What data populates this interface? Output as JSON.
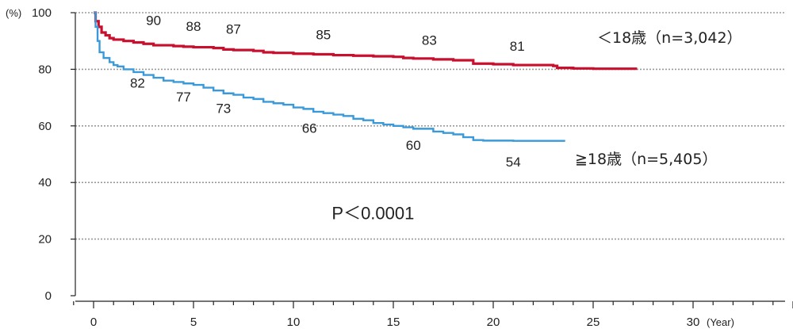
{
  "chart_data": {
    "type": "line",
    "y_unit": "(%)",
    "x_unit": "(Year)",
    "xlim": [
      0,
      35
    ],
    "ylim": [
      0,
      100
    ],
    "x_ticks": [
      0,
      5,
      10,
      15,
      20,
      25,
      30
    ],
    "y_ticks": [
      0,
      20,
      40,
      60,
      80,
      100
    ],
    "grid": "horizontal dotted",
    "series": [
      {
        "name": "＜18歳（n=3,042）",
        "color": "#c8102e",
        "points": [
          [
            0,
            100
          ],
          [
            0.1,
            97
          ],
          [
            0.25,
            95
          ],
          [
            0.4,
            93
          ],
          [
            0.6,
            92
          ],
          [
            0.8,
            91
          ],
          [
            1,
            90.5
          ],
          [
            1.5,
            90
          ],
          [
            2,
            89.5
          ],
          [
            2.5,
            89
          ],
          [
            3,
            88.5
          ],
          [
            4,
            88.2
          ],
          [
            4.5,
            88
          ],
          [
            5,
            87.8
          ],
          [
            6,
            87.5
          ],
          [
            6.5,
            87
          ],
          [
            7,
            86.8
          ],
          [
            8,
            86.5
          ],
          [
            8.5,
            86
          ],
          [
            9,
            85.8
          ],
          [
            10,
            85.5
          ],
          [
            11,
            85.3
          ],
          [
            12,
            85
          ],
          [
            13,
            84.8
          ],
          [
            14,
            84.6
          ],
          [
            15,
            84.4
          ],
          [
            15.5,
            84
          ],
          [
            16,
            83.8
          ],
          [
            17,
            83.5
          ],
          [
            18,
            83.2
          ],
          [
            19,
            82
          ],
          [
            20,
            81.8
          ],
          [
            21,
            81.5
          ],
          [
            23,
            81.2
          ],
          [
            23.2,
            80.5
          ],
          [
            24,
            80.3
          ],
          [
            25,
            80.2
          ],
          [
            27.2,
            80.2
          ]
        ]
      },
      {
        "name": "≧18歳（n=5,405）",
        "color": "#3a9ad9",
        "points": [
          [
            0,
            100
          ],
          [
            0.1,
            95
          ],
          [
            0.2,
            90
          ],
          [
            0.3,
            86
          ],
          [
            0.5,
            84
          ],
          [
            0.8,
            82.5
          ],
          [
            1,
            81.5
          ],
          [
            1.2,
            81
          ],
          [
            1.5,
            80
          ],
          [
            2,
            79
          ],
          [
            2.5,
            78
          ],
          [
            3,
            77
          ],
          [
            3.5,
            76
          ],
          [
            4,
            75.5
          ],
          [
            4.5,
            75
          ],
          [
            5,
            74.5
          ],
          [
            5.5,
            73.5
          ],
          [
            6,
            72.5
          ],
          [
            6.5,
            71.5
          ],
          [
            7,
            71
          ],
          [
            7.5,
            70
          ],
          [
            8,
            69.5
          ],
          [
            8.5,
            68.5
          ],
          [
            9,
            68
          ],
          [
            9.5,
            67.5
          ],
          [
            10,
            66.5
          ],
          [
            10.5,
            66
          ],
          [
            11,
            65
          ],
          [
            11.5,
            64.5
          ],
          [
            12,
            64
          ],
          [
            12.5,
            63.5
          ],
          [
            13,
            62.5
          ],
          [
            13.5,
            62
          ],
          [
            14,
            61
          ],
          [
            14.5,
            60.5
          ],
          [
            15,
            60
          ],
          [
            15.5,
            59.5
          ],
          [
            16,
            59
          ],
          [
            17,
            58
          ],
          [
            17.5,
            57.5
          ],
          [
            18,
            57
          ],
          [
            18.5,
            56
          ],
          [
            19,
            55
          ],
          [
            19.5,
            54.8
          ],
          [
            21,
            54.7
          ],
          [
            23.6,
            54.7
          ]
        ]
      }
    ],
    "data_labels": [
      {
        "series": 0,
        "x": 3,
        "y": 90,
        "text": "90"
      },
      {
        "series": 0,
        "x": 5,
        "y": 88,
        "text": "88"
      },
      {
        "series": 0,
        "x": 7,
        "y": 87,
        "text": "87"
      },
      {
        "series": 0,
        "x": 11.5,
        "y": 85,
        "text": "85"
      },
      {
        "series": 0,
        "x": 16.8,
        "y": 83,
        "text": "83"
      },
      {
        "series": 0,
        "x": 21.2,
        "y": 81,
        "text": "81"
      },
      {
        "series": 1,
        "x": 2.2,
        "y": 82,
        "text": "82"
      },
      {
        "series": 1,
        "x": 4.5,
        "y": 77,
        "text": "77"
      },
      {
        "series": 1,
        "x": 6.5,
        "y": 73,
        "text": "73"
      },
      {
        "series": 1,
        "x": 10.8,
        "y": 66,
        "text": "66"
      },
      {
        "series": 1,
        "x": 16,
        "y": 60,
        "text": "60"
      },
      {
        "series": 1,
        "x": 21,
        "y": 54,
        "text": "54"
      }
    ],
    "annotations": [
      {
        "text": "P＜0.0001",
        "x": 14.5,
        "y": 29
      }
    ]
  }
}
